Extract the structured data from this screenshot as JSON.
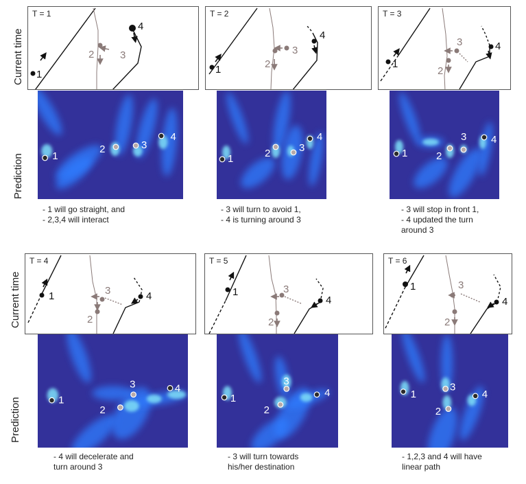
{
  "row_labels": {
    "current": "Current time",
    "prediction": "Prediction"
  },
  "colors": {
    "background": "#ffffff",
    "agent_dark": "#111111",
    "agent_gray": "#8a7a78",
    "heatmap_bg": "#33319a",
    "heatmap_hot": "#2f7dff",
    "heatmap_peak": "#7ad8f5"
  },
  "panels": [
    {
      "time_label": "T = 1",
      "agent_labels": [
        "1",
        "2",
        "3",
        "4"
      ],
      "caption": [
        "- 1 will go straight, and",
        "- 2,3,4 will interact"
      ]
    },
    {
      "time_label": "T = 2",
      "agent_labels": [
        "1",
        "2",
        "3",
        "4"
      ],
      "caption": [
        "- 3 will turn to avoid 1,",
        "- 4 is turning around 3"
      ]
    },
    {
      "time_label": "T = 3",
      "agent_labels": [
        "1",
        "2",
        "3",
        "4"
      ],
      "caption": [
        "- 3 will stop in front 1,",
        "- 4 updated the turn",
        "around 3"
      ]
    },
    {
      "time_label": "T = 4",
      "agent_labels": [
        "1",
        "2",
        "3",
        "4"
      ],
      "caption": [
        "- 4 will decelerate and",
        "turn around 3"
      ]
    },
    {
      "time_label": "T = 5",
      "agent_labels": [
        "1",
        "2",
        "3",
        "4"
      ],
      "caption": [
        "- 3 will turn towards",
        "his/her destination"
      ]
    },
    {
      "time_label": "T = 6",
      "agent_labels": [
        "1",
        "2",
        "3",
        "4"
      ],
      "caption": [
        "- 1,2,3 and 4 will have",
        "linear path"
      ]
    }
  ]
}
